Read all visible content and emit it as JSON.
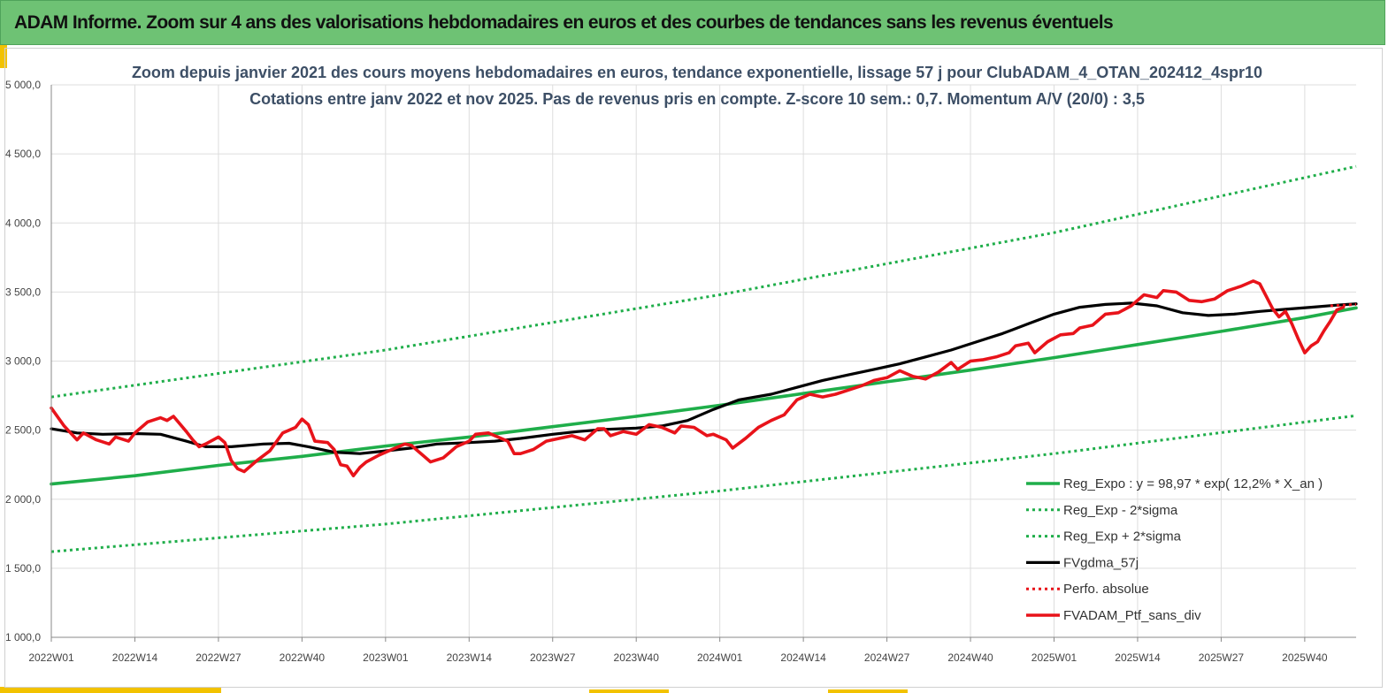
{
  "header": {
    "title": "ADAM Informe. Zoom sur 4 ans des valorisations hebdomadaires en euros et des courbes de tendances sans les revenus éventuels"
  },
  "colors": {
    "banner": "#6ec274",
    "accent": "#f2c200",
    "trend": "#1fae4a",
    "smoothed": "#000000",
    "portfolio": "#e8131a",
    "title_text": "#3d4f66"
  },
  "chart_data": {
    "type": "line",
    "title": [
      "Zoom depuis janvier 2021 des cours moyens hebdomadaires  en euros, tendance exponentielle, lissage 57 j pour ClubADAM_4_OTAN_202412_4spr10",
      "Cotations entre janv 2022 et nov 2025. Pas de revenus pris en compte. Z-score 10 sem.: 0,7. Momentum A/V (20/0) : 3,5"
    ],
    "xlabel": "",
    "ylabel": "",
    "ylim": [
      1000,
      5000
    ],
    "yticks": [
      1000,
      1500,
      2000,
      2500,
      3000,
      3500,
      4000,
      4500,
      5000
    ],
    "ytick_labels": [
      "1 000,0",
      "1 500,0",
      "2 000,0",
      "2 500,0",
      "3 000,0",
      "3 500,0",
      "4 000,0",
      "4 500,0",
      "5 000,0"
    ],
    "x_range_weeks": [
      0,
      203
    ],
    "xtick_positions": [
      0,
      13,
      26,
      39,
      52,
      65,
      78,
      91,
      104,
      117,
      130,
      143,
      156,
      169,
      182,
      195
    ],
    "xtick_labels": [
      "2022W01",
      "2022W14",
      "2022W27",
      "2022W40",
      "2023W01",
      "2023W14",
      "2023W27",
      "2023W40",
      "2024W01",
      "2024W14",
      "2024W27",
      "2024W40",
      "2025W01",
      "2025W14",
      "2025W27",
      "2025W40"
    ],
    "grid": true,
    "legend_position": "bottom-right",
    "series": [
      {
        "name": "Reg_Expo : y = 98,97 * exp( 12,2% *  X_an )",
        "style": "solid",
        "color": "#1fae4a",
        "points": [
          [
            0,
            2110
          ],
          [
            13,
            2170
          ],
          [
            26,
            2245
          ],
          [
            39,
            2310
          ],
          [
            52,
            2385
          ],
          [
            65,
            2450
          ],
          [
            78,
            2525
          ],
          [
            91,
            2600
          ],
          [
            104,
            2680
          ],
          [
            117,
            2765
          ],
          [
            130,
            2850
          ],
          [
            143,
            2935
          ],
          [
            156,
            3025
          ],
          [
            169,
            3120
          ],
          [
            182,
            3215
          ],
          [
            195,
            3315
          ],
          [
            203,
            3385
          ]
        ]
      },
      {
        "name": "Reg_Exp - 2*sigma",
        "style": "dotted",
        "color": "#1fae4a",
        "points": [
          [
            0,
            1620
          ],
          [
            52,
            1820
          ],
          [
            104,
            2060
          ],
          [
            156,
            2330
          ],
          [
            203,
            2605
          ]
        ]
      },
      {
        "name": "Reg_Exp + 2*sigma",
        "style": "dotted",
        "color": "#1fae4a",
        "points": [
          [
            0,
            2740
          ],
          [
            52,
            3080
          ],
          [
            104,
            3480
          ],
          [
            156,
            3930
          ],
          [
            203,
            4410
          ]
        ]
      },
      {
        "name": "FVgdma_57j",
        "style": "solid",
        "color": "#000000",
        "points": [
          [
            0,
            2510
          ],
          [
            4,
            2480
          ],
          [
            8,
            2470
          ],
          [
            13,
            2475
          ],
          [
            17,
            2470
          ],
          [
            21,
            2420
          ],
          [
            24,
            2380
          ],
          [
            28,
            2380
          ],
          [
            33,
            2400
          ],
          [
            37,
            2405
          ],
          [
            40,
            2380
          ],
          [
            44,
            2340
          ],
          [
            48,
            2330
          ],
          [
            52,
            2350
          ],
          [
            56,
            2370
          ],
          [
            60,
            2400
          ],
          [
            65,
            2410
          ],
          [
            69,
            2420
          ],
          [
            73,
            2440
          ],
          [
            78,
            2470
          ],
          [
            82,
            2490
          ],
          [
            86,
            2505
          ],
          [
            91,
            2515
          ],
          [
            95,
            2530
          ],
          [
            99,
            2570
          ],
          [
            103,
            2650
          ],
          [
            107,
            2720
          ],
          [
            112,
            2760
          ],
          [
            116,
            2810
          ],
          [
            120,
            2860
          ],
          [
            124,
            2900
          ],
          [
            128,
            2940
          ],
          [
            132,
            2980
          ],
          [
            136,
            3030
          ],
          [
            140,
            3080
          ],
          [
            144,
            3140
          ],
          [
            148,
            3200
          ],
          [
            152,
            3270
          ],
          [
            156,
            3340
          ],
          [
            160,
            3390
          ],
          [
            164,
            3410
          ],
          [
            168,
            3420
          ],
          [
            172,
            3400
          ],
          [
            176,
            3350
          ],
          [
            180,
            3330
          ],
          [
            184,
            3340
          ],
          [
            188,
            3360
          ],
          [
            192,
            3375
          ],
          [
            196,
            3390
          ],
          [
            200,
            3405
          ],
          [
            203,
            3415
          ]
        ]
      },
      {
        "name": "Perfo. absolue",
        "style": "dotted",
        "color": "#e8131a",
        "points": [
          [
            199,
            3400
          ],
          [
            203,
            3410
          ]
        ]
      },
      {
        "name": "FVADAM_Ptf_sans_div",
        "style": "solid",
        "color": "#e8131a",
        "points": [
          [
            0,
            2660
          ],
          [
            2,
            2530
          ],
          [
            3,
            2480
          ],
          [
            4,
            2430
          ],
          [
            5,
            2480
          ],
          [
            7,
            2430
          ],
          [
            9,
            2400
          ],
          [
            10,
            2450
          ],
          [
            12,
            2420
          ],
          [
            13,
            2480
          ],
          [
            15,
            2560
          ],
          [
            17,
            2590
          ],
          [
            18,
            2570
          ],
          [
            19,
            2600
          ],
          [
            21,
            2490
          ],
          [
            22,
            2430
          ],
          [
            23,
            2380
          ],
          [
            24,
            2400
          ],
          [
            26,
            2450
          ],
          [
            27,
            2410
          ],
          [
            28,
            2280
          ],
          [
            29,
            2220
          ],
          [
            30,
            2200
          ],
          [
            32,
            2280
          ],
          [
            34,
            2350
          ],
          [
            36,
            2480
          ],
          [
            38,
            2520
          ],
          [
            39,
            2580
          ],
          [
            40,
            2540
          ],
          [
            41,
            2420
          ],
          [
            43,
            2410
          ],
          [
            44,
            2360
          ],
          [
            45,
            2250
          ],
          [
            46,
            2240
          ],
          [
            47,
            2170
          ],
          [
            48,
            2230
          ],
          [
            49,
            2270
          ],
          [
            51,
            2320
          ],
          [
            53,
            2360
          ],
          [
            55,
            2400
          ],
          [
            56,
            2390
          ],
          [
            58,
            2310
          ],
          [
            59,
            2270
          ],
          [
            61,
            2300
          ],
          [
            63,
            2380
          ],
          [
            65,
            2420
          ],
          [
            66,
            2470
          ],
          [
            68,
            2480
          ],
          [
            70,
            2440
          ],
          [
            71,
            2420
          ],
          [
            72,
            2330
          ],
          [
            73,
            2330
          ],
          [
            75,
            2360
          ],
          [
            77,
            2420
          ],
          [
            79,
            2440
          ],
          [
            81,
            2460
          ],
          [
            83,
            2430
          ],
          [
            85,
            2510
          ],
          [
            86,
            2510
          ],
          [
            87,
            2460
          ],
          [
            89,
            2490
          ],
          [
            91,
            2470
          ],
          [
            93,
            2540
          ],
          [
            95,
            2520
          ],
          [
            97,
            2480
          ],
          [
            98,
            2530
          ],
          [
            100,
            2520
          ],
          [
            102,
            2460
          ],
          [
            103,
            2470
          ],
          [
            105,
            2430
          ],
          [
            106,
            2370
          ],
          [
            108,
            2440
          ],
          [
            110,
            2520
          ],
          [
            112,
            2570
          ],
          [
            114,
            2610
          ],
          [
            116,
            2720
          ],
          [
            118,
            2760
          ],
          [
            120,
            2740
          ],
          [
            122,
            2760
          ],
          [
            124,
            2790
          ],
          [
            126,
            2820
          ],
          [
            128,
            2860
          ],
          [
            130,
            2880
          ],
          [
            132,
            2930
          ],
          [
            134,
            2890
          ],
          [
            136,
            2870
          ],
          [
            138,
            2920
          ],
          [
            140,
            2990
          ],
          [
            141,
            2940
          ],
          [
            143,
            3000
          ],
          [
            145,
            3010
          ],
          [
            147,
            3030
          ],
          [
            149,
            3060
          ],
          [
            150,
            3110
          ],
          [
            152,
            3130
          ],
          [
            153,
            3060
          ],
          [
            155,
            3140
          ],
          [
            157,
            3190
          ],
          [
            159,
            3200
          ],
          [
            160,
            3240
          ],
          [
            162,
            3260
          ],
          [
            164,
            3340
          ],
          [
            166,
            3350
          ],
          [
            168,
            3400
          ],
          [
            170,
            3480
          ],
          [
            172,
            3460
          ],
          [
            173,
            3510
          ],
          [
            175,
            3500
          ],
          [
            177,
            3440
          ],
          [
            179,
            3430
          ],
          [
            181,
            3450
          ],
          [
            183,
            3510
          ],
          [
            185,
            3540
          ],
          [
            187,
            3580
          ],
          [
            188,
            3560
          ],
          [
            189,
            3470
          ],
          [
            190,
            3380
          ],
          [
            191,
            3320
          ],
          [
            192,
            3360
          ],
          [
            193,
            3270
          ],
          [
            194,
            3160
          ],
          [
            195,
            3060
          ],
          [
            196,
            3110
          ],
          [
            197,
            3140
          ],
          [
            198,
            3220
          ],
          [
            199,
            3290
          ],
          [
            200,
            3370
          ],
          [
            201,
            3390
          ]
        ]
      }
    ]
  }
}
